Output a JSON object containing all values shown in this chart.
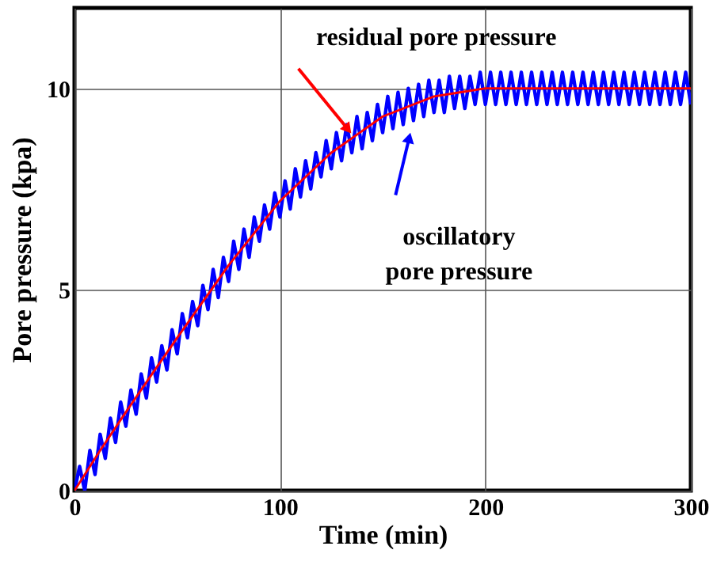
{
  "chart_data": {
    "type": "line",
    "xlabel": "Time (min)",
    "ylabel": "Pore pressure (kpa)",
    "xlim": [
      0,
      300
    ],
    "ylim": [
      0,
      12
    ],
    "xticks": [
      0,
      100,
      200,
      300
    ],
    "yticks": [
      0,
      5,
      10
    ],
    "grid": true,
    "marker": "none",
    "line_style": "solid",
    "series": [
      {
        "color": "#0000ff",
        "x": [
          0,
          2.5,
          5,
          7.5,
          10,
          12.5,
          15,
          17.5,
          20,
          22.5,
          25,
          27.5,
          30,
          32.5,
          35,
          37.5,
          40,
          42.5,
          45,
          47.5,
          50,
          52.5,
          55,
          57.5,
          60,
          62.5,
          65,
          67.5,
          70,
          72.5,
          75,
          77.5,
          80,
          82.5,
          85,
          87.5,
          90,
          92.5,
          95,
          97.5,
          100,
          102.5,
          105,
          107.5,
          110,
          112.5,
          115,
          117.5,
          120,
          122.5,
          125,
          127.5,
          130,
          132.5,
          135,
          137.5,
          140,
          142.5,
          145,
          147.5,
          150,
          152.5,
          155,
          157.5,
          160,
          162.5,
          165,
          167.5,
          170,
          172.5,
          175,
          177.5,
          180,
          182.5,
          185,
          187.5,
          190,
          192.5,
          195,
          197.5,
          200,
          202.5,
          205,
          207.5,
          210,
          212.5,
          215,
          217.5,
          220,
          222.5,
          225,
          227.5,
          230,
          232.5,
          235,
          237.5,
          240,
          242.5,
          245,
          247.5,
          250,
          252.5,
          255,
          257.5,
          260,
          262.5,
          265,
          267.5,
          270,
          272.5,
          275,
          277.5,
          280,
          282.5,
          285,
          287.5,
          290,
          292.5,
          295,
          297.5,
          300
        ],
        "values": [
          0.0,
          0.6,
          0.0,
          1.0,
          0.4,
          1.4,
          0.8,
          1.8,
          1.2,
          2.2,
          1.6,
          2.5,
          1.9,
          2.9,
          2.3,
          3.3,
          2.7,
          3.6,
          3.0,
          4.0,
          3.4,
          4.4,
          3.8,
          4.7,
          4.1,
          5.1,
          4.5,
          5.5,
          4.8,
          5.8,
          5.2,
          6.2,
          5.5,
          6.5,
          5.8,
          6.8,
          6.2,
          7.1,
          6.5,
          7.4,
          6.8,
          7.7,
          7.0,
          8.0,
          7.3,
          8.2,
          7.5,
          8.4,
          7.8,
          8.7,
          8.0,
          8.9,
          8.2,
          9.1,
          8.4,
          9.3,
          8.5,
          9.4,
          8.7,
          9.6,
          8.9,
          9.8,
          9.0,
          9.9,
          9.1,
          10.0,
          9.2,
          10.1,
          9.3,
          10.2,
          9.4,
          10.2,
          9.4,
          10.3,
          9.5,
          10.3,
          9.5,
          10.3,
          9.6,
          10.4,
          9.6,
          10.4,
          9.6,
          10.4,
          9.6,
          10.4,
          9.6,
          10.4,
          9.6,
          10.4,
          9.6,
          10.4,
          9.6,
          10.4,
          9.6,
          10.4,
          9.6,
          10.4,
          9.6,
          10.4,
          9.6,
          10.4,
          9.6,
          10.4,
          9.6,
          10.4,
          9.6,
          10.4,
          9.6,
          10.4,
          9.6,
          10.4,
          9.6,
          10.4,
          9.6,
          10.4,
          9.6,
          10.4,
          9.6,
          10.4,
          9.6
        ]
      },
      {
        "color": "#ff0000",
        "x": [
          0,
          12.5,
          25,
          37.5,
          50,
          62.5,
          75,
          87.5,
          100,
          112.5,
          125,
          137.5,
          150,
          162.5,
          175,
          187.5,
          200,
          300
        ],
        "values": [
          0,
          1.0,
          1.95,
          2.88,
          3.8,
          4.7,
          5.6,
          6.4,
          7.2,
          7.8,
          8.4,
          8.85,
          9.3,
          9.55,
          9.8,
          9.9,
          10,
          10
        ]
      }
    ],
    "annotations": [
      {
        "text": "residual pore pressure",
        "x": 136,
        "y": 8.8
      },
      {
        "text": "oscillatory\npore pressure",
        "x": 164,
        "y": 9.0
      }
    ]
  }
}
